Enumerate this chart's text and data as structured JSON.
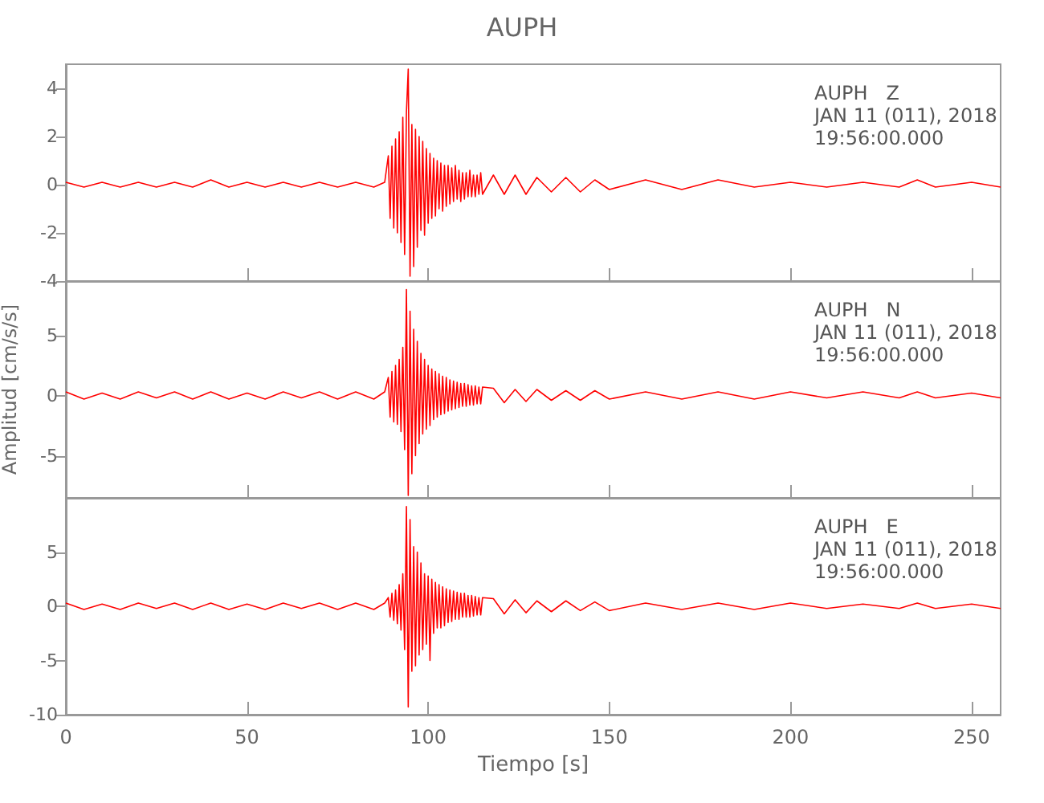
{
  "chart_data": [
    {
      "type": "line",
      "title": "AUPH",
      "annotations": [
        "AUPH   Z",
        "JAN 11 (011), 2018",
        "19:56:00.000"
      ],
      "marker": "none",
      "tick_labels": "y",
      "x": [
        0,
        5,
        10,
        15,
        20,
        25,
        30,
        35,
        40,
        45,
        50,
        55,
        60,
        65,
        70,
        75,
        80,
        85,
        88,
        89,
        89.5,
        90,
        90.5,
        91,
        91.5,
        92,
        92.5,
        93,
        93.5,
        94,
        94.5,
        95,
        95.5,
        96,
        96.5,
        97,
        97.5,
        98,
        98.5,
        99,
        99.5,
        100,
        100.5,
        101,
        101.5,
        102,
        102.5,
        103,
        103.5,
        104,
        104.5,
        105,
        105.5,
        106,
        106.5,
        107,
        107.5,
        108,
        108.5,
        109,
        109.5,
        110,
        110.5,
        111,
        111.5,
        112,
        112.5,
        113,
        113.5,
        114,
        114.5,
        115,
        118,
        121,
        124,
        127,
        130,
        134,
        138,
        142,
        146,
        150,
        160,
        170,
        180,
        190,
        200,
        210,
        220,
        230,
        235,
        240,
        250,
        258
      ],
      "xlim": [
        0,
        258
      ],
      "xticks": [
        0,
        50,
        100,
        150,
        200,
        250
      ],
      "ylim": [
        -4,
        5
      ],
      "yticks": [
        -4,
        -2,
        0,
        2,
        4
      ],
      "series": [
        {
          "color": "#ff0000",
          "values": [
            0.1,
            -0.1,
            0.1,
            -0.1,
            0.1,
            -0.1,
            0.1,
            -0.1,
            0.2,
            -0.1,
            0.1,
            -0.1,
            0.1,
            -0.1,
            0.1,
            -0.1,
            0.1,
            -0.1,
            0.1,
            1.2,
            -1.4,
            1.6,
            -1.8,
            1.9,
            -2.0,
            2.2,
            -2.4,
            2.8,
            -2.9,
            3.0,
            4.8,
            -3.8,
            2.5,
            -3.4,
            2.3,
            -2.6,
            2.0,
            -1.9,
            1.8,
            -2.1,
            1.5,
            -1.6,
            1.3,
            -1.4,
            1.1,
            -1.3,
            1.0,
            -1.0,
            0.9,
            -1.1,
            0.8,
            -0.9,
            0.8,
            -0.8,
            0.7,
            -0.7,
            0.8,
            -0.6,
            0.6,
            -0.7,
            0.5,
            -0.6,
            0.5,
            -0.5,
            0.6,
            -0.5,
            0.4,
            -0.5,
            0.4,
            -0.4,
            0.5,
            -0.4,
            0.4,
            -0.4,
            0.4,
            -0.4,
            0.3,
            -0.3,
            0.3,
            -0.3,
            0.2,
            -0.2,
            0.2,
            -0.2,
            0.2,
            -0.1,
            0.1,
            -0.1,
            0.1,
            -0.1,
            0.2,
            -0.1,
            0.1,
            -0.1
          ]
        }
      ]
    },
    {
      "type": "line",
      "ylabel": "Amplitud [cm/s/s]",
      "annotations": [
        "AUPH   N",
        "JAN 11 (011), 2018",
        "19:56:00.000"
      ],
      "marker": "none",
      "tick_labels": "y",
      "x": [
        0,
        5,
        10,
        15,
        20,
        25,
        30,
        35,
        40,
        45,
        50,
        55,
        60,
        65,
        70,
        75,
        80,
        85,
        88,
        89,
        89.5,
        90,
        90.5,
        91,
        91.5,
        92,
        92.5,
        93,
        93.5,
        94,
        94.5,
        95,
        95.5,
        96,
        96.5,
        97,
        97.5,
        98,
        98.5,
        99,
        99.5,
        100,
        100.5,
        101,
        101.5,
        102,
        102.5,
        103,
        103.5,
        104,
        104.5,
        105,
        105.5,
        106,
        106.5,
        107,
        107.5,
        108,
        108.5,
        109,
        109.5,
        110,
        110.5,
        111,
        111.5,
        112,
        112.5,
        113,
        113.5,
        114,
        114.5,
        115,
        118,
        121,
        124,
        127,
        130,
        134,
        138,
        142,
        146,
        150,
        160,
        170,
        180,
        190,
        200,
        210,
        220,
        230,
        235,
        240,
        250,
        258
      ],
      "xlim": [
        0,
        258
      ],
      "xticks": [
        0,
        50,
        100,
        150,
        200,
        250
      ],
      "ylim": [
        -8.5,
        9.5
      ],
      "yticks": [
        -5,
        0,
        5
      ],
      "series": [
        {
          "color": "#ff0000",
          "values": [
            0.3,
            -0.3,
            0.2,
            -0.3,
            0.3,
            -0.2,
            0.3,
            -0.3,
            0.3,
            -0.3,
            0.2,
            -0.3,
            0.3,
            -0.2,
            0.3,
            -0.3,
            0.3,
            -0.3,
            0.3,
            1.5,
            -1.8,
            2.0,
            -2.2,
            2.5,
            -2.4,
            3.0,
            -3.0,
            4.0,
            -4.5,
            8.8,
            -8.3,
            7.0,
            -6.5,
            5.5,
            -5.0,
            4.5,
            -4.0,
            3.5,
            -3.2,
            3.0,
            -2.8,
            2.5,
            -2.5,
            2.2,
            -2.0,
            2.0,
            -1.8,
            1.8,
            -1.6,
            1.6,
            -1.5,
            1.5,
            -1.3,
            1.3,
            -1.2,
            1.2,
            -1.1,
            1.1,
            -1.0,
            1.0,
            -0.9,
            1.0,
            -0.9,
            0.9,
            -0.8,
            0.8,
            -0.8,
            0.8,
            -0.7,
            0.7,
            -0.7,
            0.7,
            0.6,
            -0.6,
            0.5,
            -0.5,
            0.5,
            -0.4,
            0.4,
            -0.4,
            0.4,
            -0.3,
            0.3,
            -0.3,
            0.3,
            -0.3,
            0.3,
            -0.2,
            0.3,
            -0.2,
            0.3,
            -0.2,
            0.2,
            -0.2
          ]
        }
      ]
    },
    {
      "type": "line",
      "xlabel": "Tiempo [s]",
      "annotations": [
        "AUPH   E",
        "JAN 11 (011), 2018",
        "19:56:00.000"
      ],
      "marker": "none",
      "x": [
        0,
        5,
        10,
        15,
        20,
        25,
        30,
        35,
        40,
        45,
        50,
        55,
        60,
        65,
        70,
        75,
        80,
        85,
        88,
        89,
        89.5,
        90,
        90.5,
        91,
        91.5,
        92,
        92.5,
        93,
        93.5,
        94,
        94.5,
        95,
        95.5,
        96,
        96.5,
        97,
        97.5,
        98,
        98.5,
        99,
        99.5,
        100,
        100.5,
        101,
        101.5,
        102,
        102.5,
        103,
        103.5,
        104,
        104.5,
        105,
        105.5,
        106,
        106.5,
        107,
        107.5,
        108,
        108.5,
        109,
        109.5,
        110,
        110.5,
        111,
        111.5,
        112,
        112.5,
        113,
        113.5,
        114,
        114.5,
        115,
        118,
        121,
        124,
        127,
        130,
        134,
        138,
        142,
        146,
        150,
        160,
        170,
        180,
        190,
        200,
        210,
        220,
        230,
        235,
        240,
        250,
        258
      ],
      "xlim": [
        0,
        258
      ],
      "xticks": [
        0,
        50,
        100,
        150,
        200,
        250
      ],
      "ylim": [
        -10,
        10
      ],
      "yticks": [
        -10,
        -5,
        0,
        5
      ],
      "series": [
        {
          "color": "#ff0000",
          "values": [
            0.3,
            -0.3,
            0.2,
            -0.3,
            0.3,
            -0.2,
            0.3,
            -0.3,
            0.3,
            -0.3,
            0.2,
            -0.3,
            0.3,
            -0.2,
            0.3,
            -0.3,
            0.3,
            -0.3,
            0.3,
            0.8,
            -1.0,
            1.2,
            -1.3,
            1.5,
            -1.6,
            2.0,
            -2.2,
            3.0,
            -4.0,
            9.2,
            -9.3,
            8.0,
            -6.0,
            5.5,
            -5.5,
            5.0,
            -4.5,
            4.0,
            -4.0,
            3.0,
            -3.5,
            2.8,
            -5.0,
            2.5,
            -2.5,
            2.2,
            -2.0,
            2.0,
            -2.0,
            1.8,
            -1.8,
            1.6,
            -1.5,
            1.5,
            -1.4,
            1.4,
            -1.2,
            1.3,
            -1.2,
            1.2,
            -1.0,
            1.2,
            -1.0,
            1.0,
            -1.0,
            1.0,
            -0.9,
            0.9,
            -0.8,
            0.8,
            -0.8,
            0.8,
            0.7,
            -0.7,
            0.6,
            -0.6,
            0.5,
            -0.5,
            0.5,
            -0.4,
            0.4,
            -0.4,
            0.3,
            -0.3,
            0.3,
            -0.3,
            0.3,
            -0.2,
            0.2,
            -0.2,
            0.3,
            -0.2,
            0.2,
            -0.2
          ]
        }
      ]
    }
  ]
}
